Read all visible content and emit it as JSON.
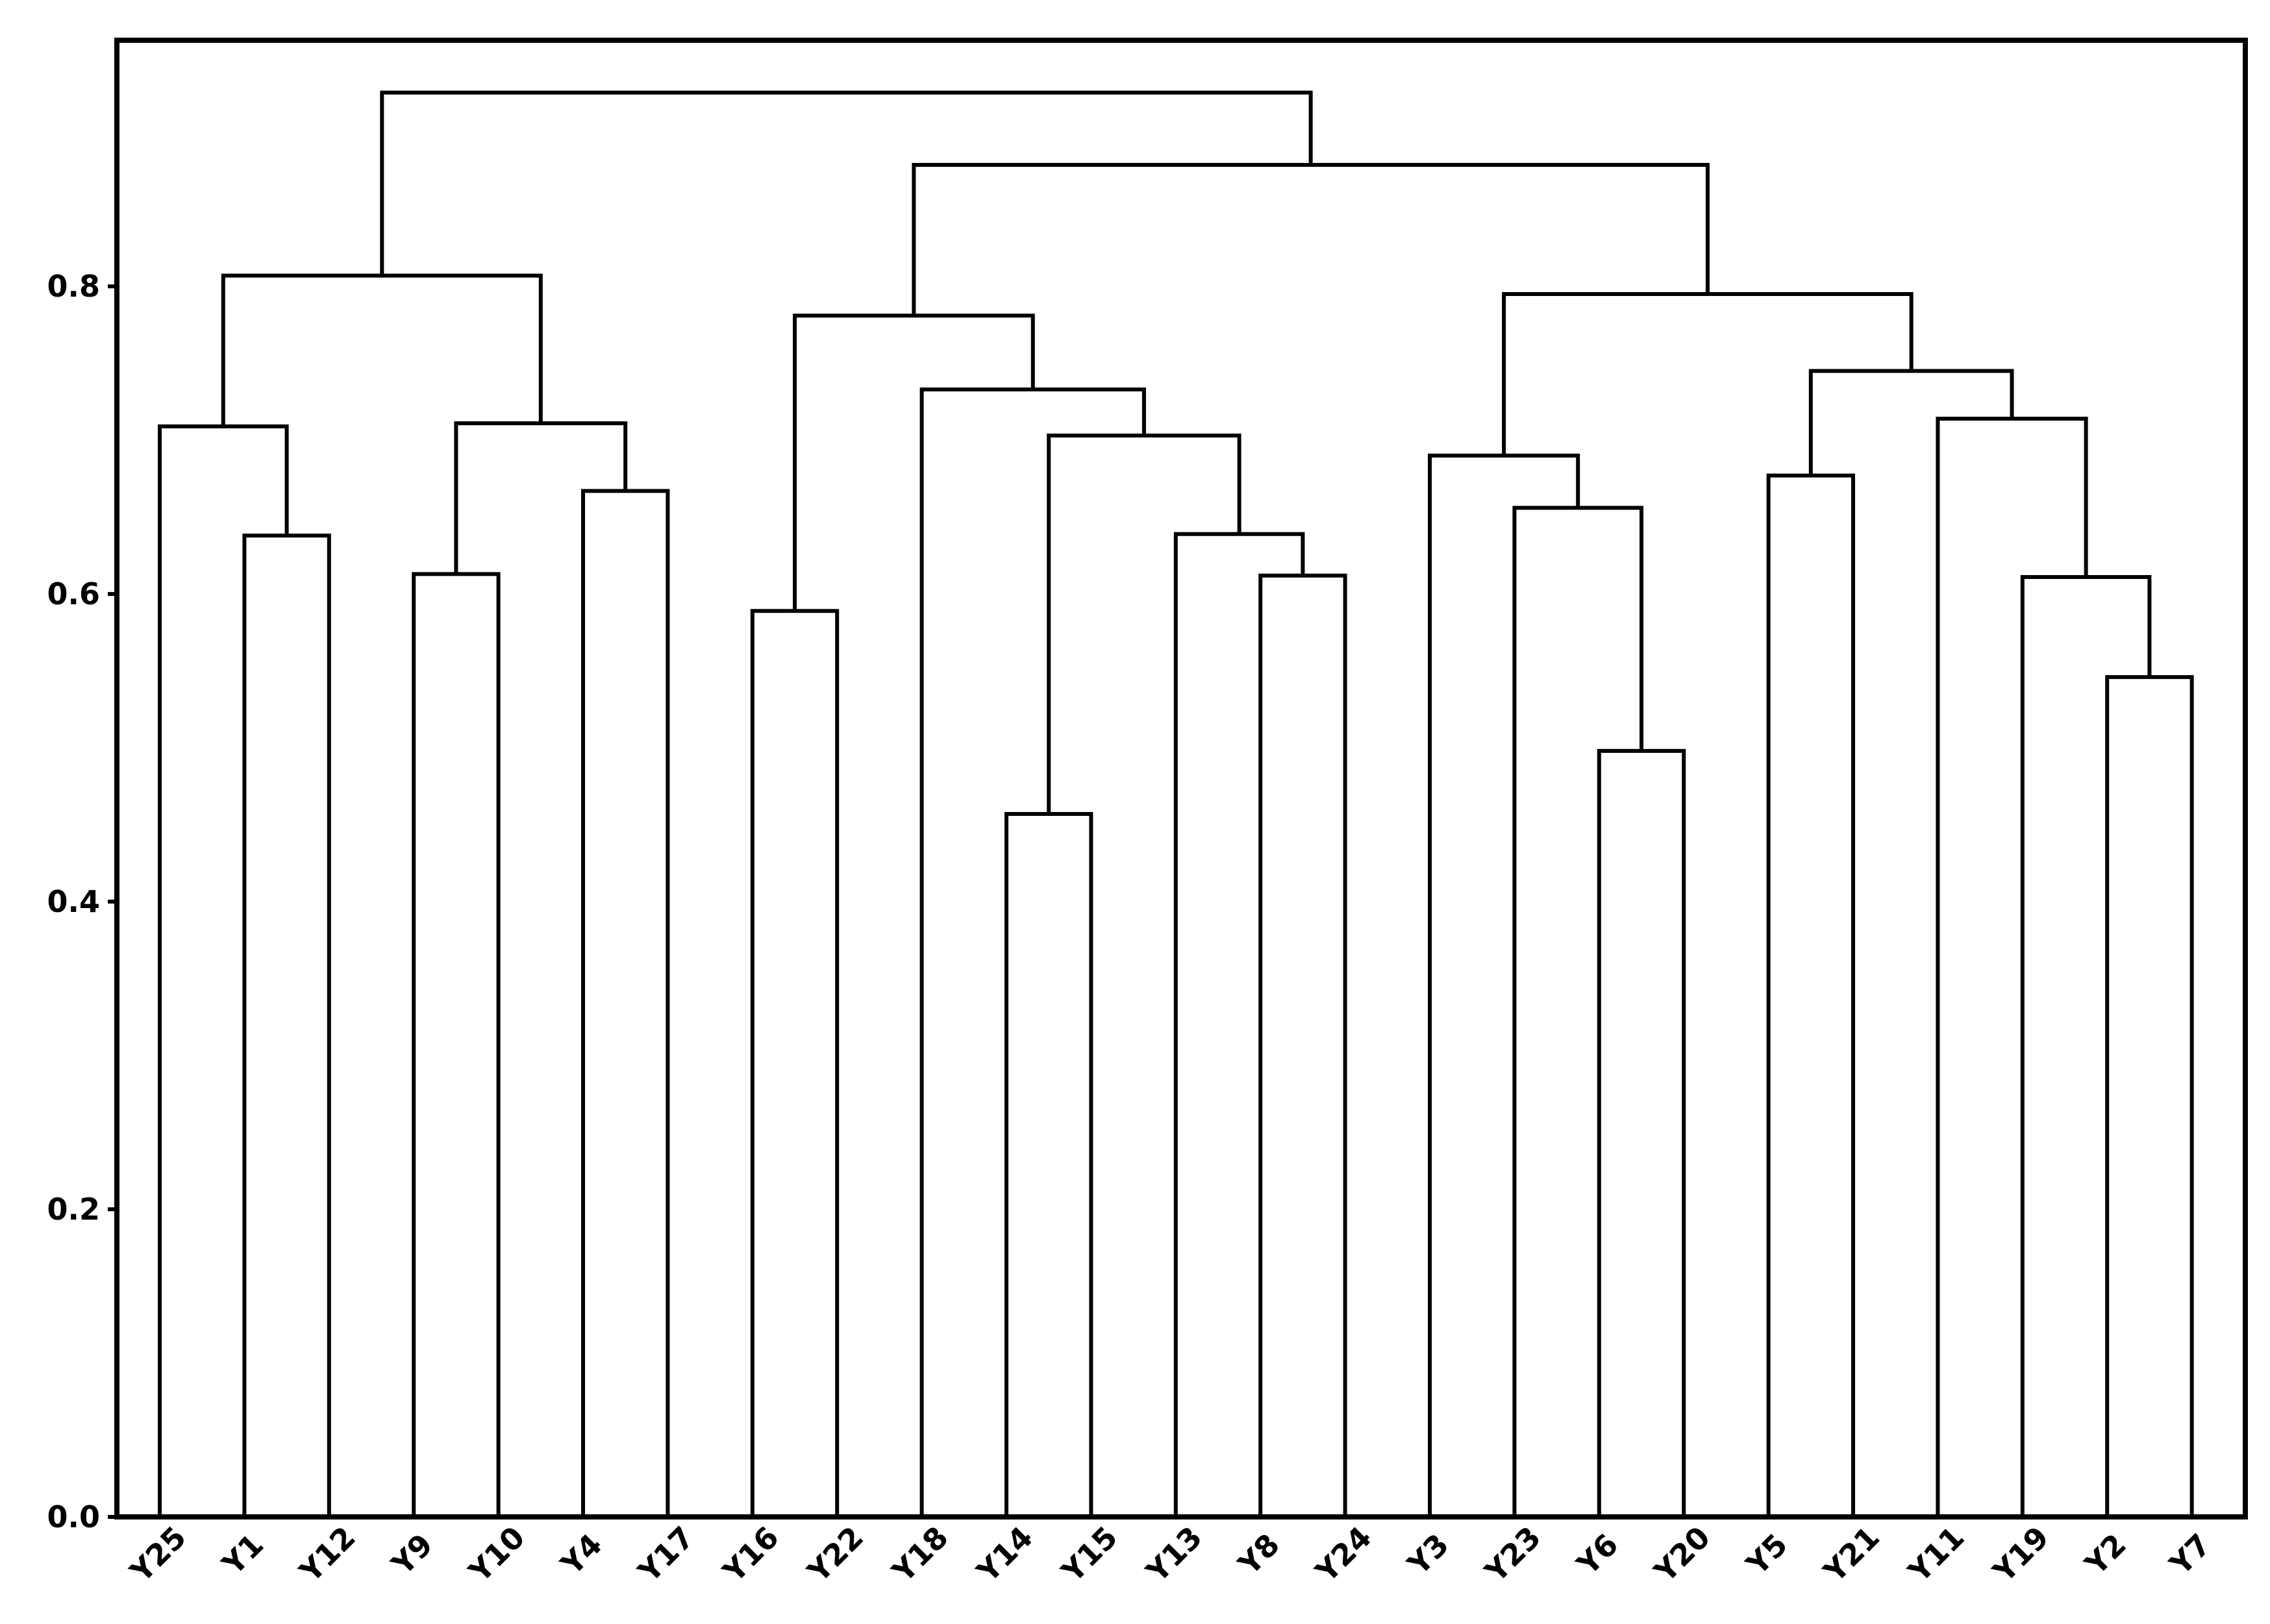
{
  "chart_data": {
    "type": "dendrogram",
    "title": "",
    "xlabel": "",
    "ylabel": "",
    "ylim": [
      0,
      0.96
    ],
    "y_ticks": [
      0.0,
      0.2,
      0.4,
      0.6,
      0.8
    ],
    "y_tick_labels": [
      "0.0",
      "0.2",
      "0.4",
      "0.6",
      "0.8"
    ],
    "grid": false,
    "legend": "none",
    "leaves": [
      "Y25",
      "Y1",
      "Y12",
      "Y9",
      "Y10",
      "Y4",
      "Y17",
      "Y16",
      "Y22",
      "Y18",
      "Y14",
      "Y15",
      "Y13",
      "Y8",
      "Y24",
      "Y3",
      "Y23",
      "Y6",
      "Y20",
      "Y5",
      "Y21",
      "Y11",
      "Y19",
      "Y2",
      "Y7"
    ],
    "merges": [
      {
        "id": "a",
        "left": "Y1",
        "right": "Y12",
        "height": 0.638
      },
      {
        "id": "b",
        "left": "Y25",
        "right": "a",
        "height": 0.709
      },
      {
        "id": "c",
        "left": "Y9",
        "right": "Y10",
        "height": 0.613
      },
      {
        "id": "d",
        "left": "Y4",
        "right": "Y17",
        "height": 0.667
      },
      {
        "id": "e",
        "left": "c",
        "right": "d",
        "height": 0.711
      },
      {
        "id": "f",
        "left": "b",
        "right": "e",
        "height": 0.807
      },
      {
        "id": "g",
        "left": "Y16",
        "right": "Y22",
        "height": 0.589
      },
      {
        "id": "h",
        "left": "Y14",
        "right": "Y15",
        "height": 0.457
      },
      {
        "id": "i",
        "left": "Y8",
        "right": "Y24",
        "height": 0.612
      },
      {
        "id": "j",
        "left": "Y13",
        "right": "i",
        "height": 0.639
      },
      {
        "id": "k",
        "left": "h",
        "right": "j",
        "height": 0.703
      },
      {
        "id": "l",
        "left": "Y18",
        "right": "k",
        "height": 0.733
      },
      {
        "id": "m",
        "left": "g",
        "right": "l",
        "height": 0.781
      },
      {
        "id": "n",
        "left": "Y6",
        "right": "Y20",
        "height": 0.498
      },
      {
        "id": "o",
        "left": "Y23",
        "right": "n",
        "height": 0.656
      },
      {
        "id": "p",
        "left": "Y3",
        "right": "o",
        "height": 0.69
      },
      {
        "id": "q",
        "left": "Y5",
        "right": "Y21",
        "height": 0.677
      },
      {
        "id": "r",
        "left": "Y2",
        "right": "Y7",
        "height": 0.546
      },
      {
        "id": "s",
        "left": "Y19",
        "right": "r",
        "height": 0.611
      },
      {
        "id": "t",
        "left": "Y11",
        "right": "s",
        "height": 0.714
      },
      {
        "id": "u",
        "left": "q",
        "right": "t",
        "height": 0.745
      },
      {
        "id": "v",
        "left": "p",
        "right": "u",
        "height": 0.795
      },
      {
        "id": "w",
        "left": "m",
        "right": "v",
        "height": 0.879
      },
      {
        "id": "x",
        "left": "f",
        "right": "w",
        "height": 0.926
      }
    ],
    "colors": {
      "line": "#000000",
      "axis": "#000000",
      "text": "#000000",
      "background": "#ffffff"
    }
  }
}
